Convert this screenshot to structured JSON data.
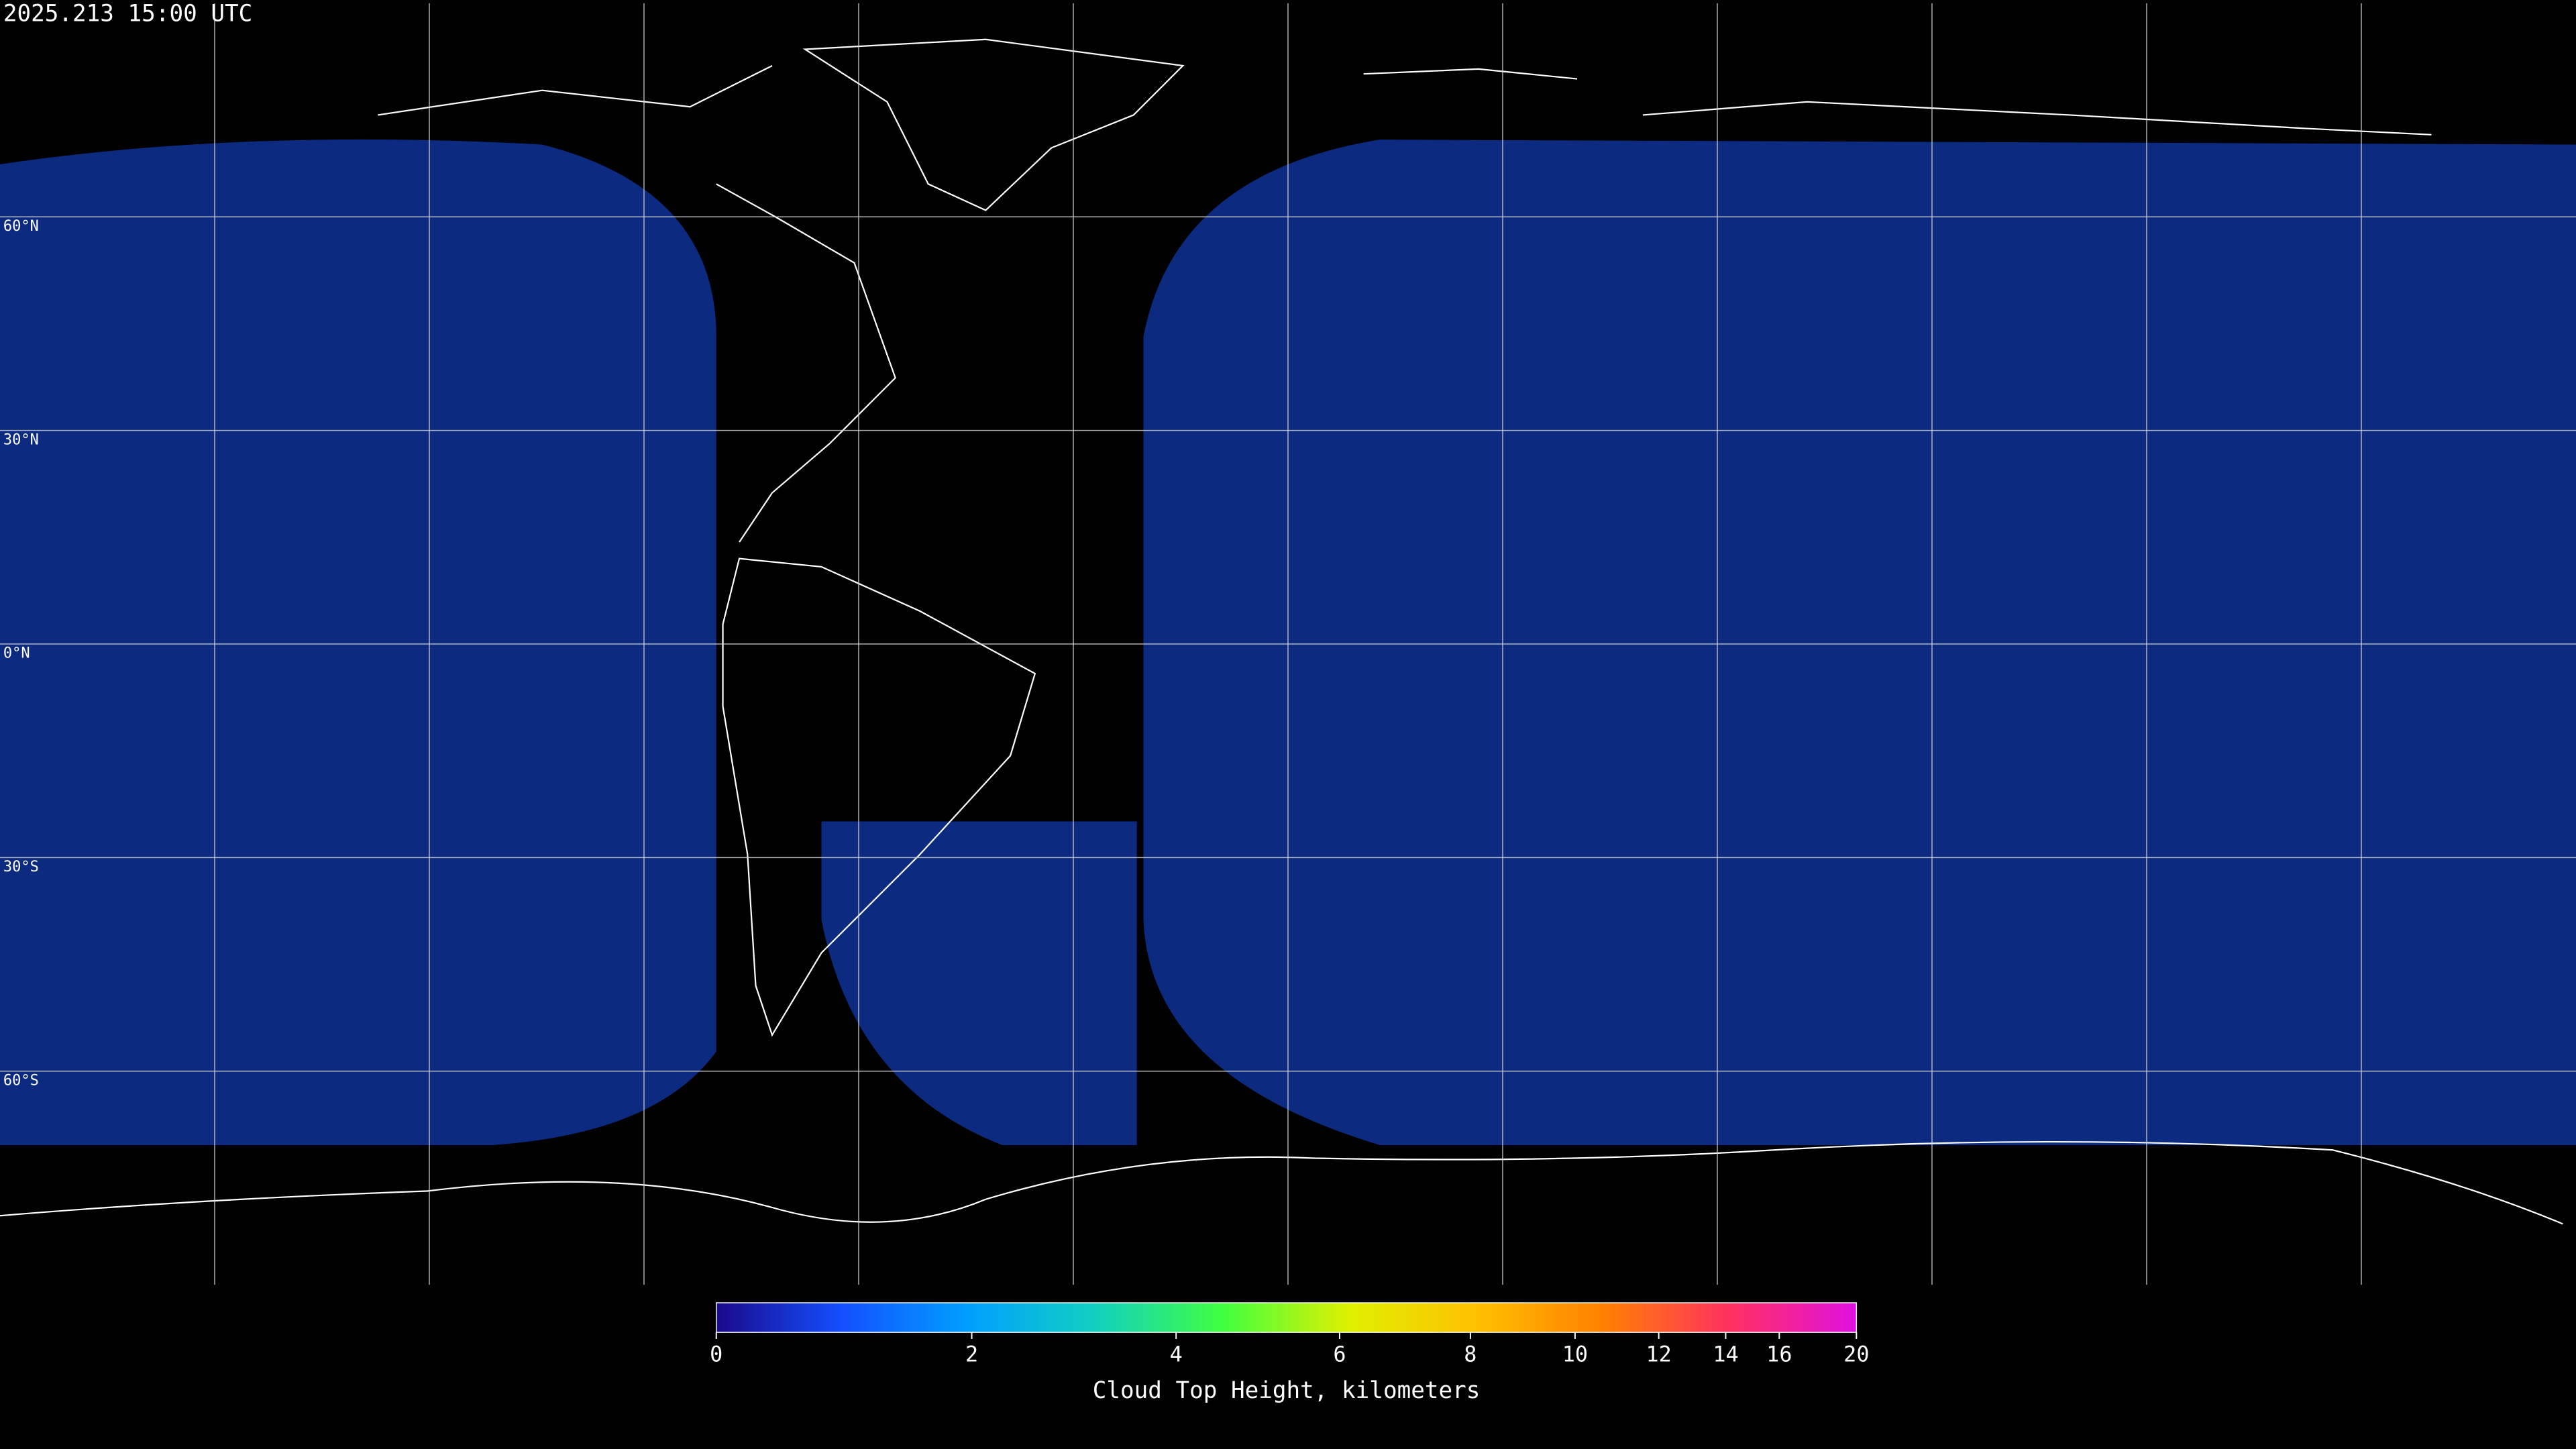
{
  "chart_data": {
    "type": "map",
    "title": "2025.213 15:00 UTC",
    "xlim": [
      -180,
      180
    ],
    "ylim": [
      -90,
      90
    ],
    "xticks": [
      -150,
      -120,
      -90,
      -60,
      -30,
      0,
      30,
      60,
      90,
      120,
      150
    ],
    "yticks": [
      {
        "value": 60,
        "label": "60°N"
      },
      {
        "value": 30,
        "label": "30°N"
      },
      {
        "value": 0,
        "label": "0°N"
      },
      {
        "value": -30,
        "label": "30°S"
      },
      {
        "value": -60,
        "label": "60°S"
      }
    ],
    "grid": true,
    "colorbar": {
      "label": "Cloud Top Height, kilometers",
      "lim": [
        0,
        20
      ],
      "ticks": [
        0,
        2,
        4,
        6,
        8,
        10,
        12,
        14,
        16,
        20
      ],
      "colors": [
        "#1a0a8c",
        "#1450ff",
        "#00a0ff",
        "#10d0c0",
        "#40ff40",
        "#e0f000",
        "#ffc000",
        "#ff8000",
        "#ff3060",
        "#e010e0"
      ]
    }
  }
}
